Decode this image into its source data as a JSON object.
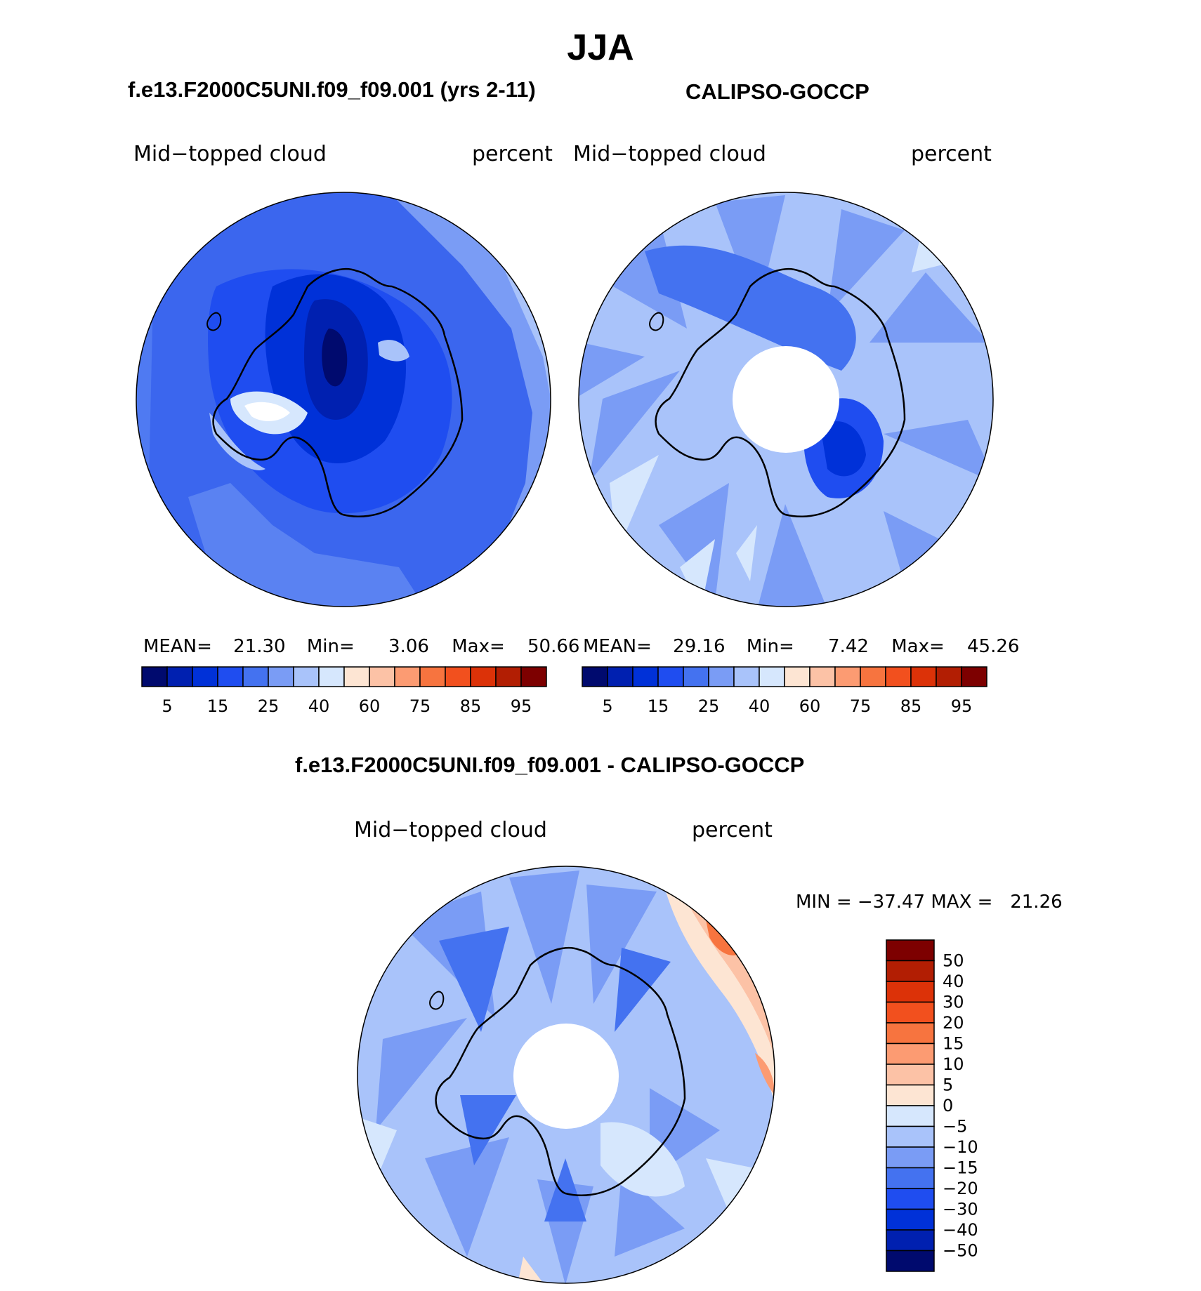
{
  "season_title": "JJA",
  "model_panel": {
    "title": "f.e13.F2000C5UNI.f09_f09.001 (yrs 2-11)",
    "variable": "Mid−topped cloud",
    "units": "percent",
    "stats": {
      "mean_label": "MEAN=",
      "mean": "21.30",
      "min_label": "Min=",
      "min": "3.06",
      "max_label": "Max=",
      "max": "50.66"
    }
  },
  "obs_panel": {
    "title": "CALIPSO-GOCCP",
    "variable": "Mid−topped cloud",
    "units": "percent",
    "stats": {
      "mean_label": "MEAN=",
      "mean": "29.16",
      "min_label": "Min=",
      "min": "7.42",
      "max_label": "Max=",
      "max": "45.26"
    }
  },
  "diff_panel": {
    "title": "f.e13.F2000C5UNI.f09_f09.001 - CALIPSO-GOCCP",
    "variable": "Mid−topped cloud",
    "units": "percent",
    "stats_line": "MIN = −37.47 MAX =   21.26"
  },
  "colorbar_abs": {
    "colors": [
      "#000a6e",
      "#0020b0",
      "#0031d8",
      "#1f4df0",
      "#4472f0",
      "#7a9cf5",
      "#a9c3fa",
      "#d6e7fd",
      "#fde5d3",
      "#fcc2a6",
      "#fc9b72",
      "#f7743f",
      "#f2501e",
      "#dc3208",
      "#b21e03",
      "#7d0000"
    ],
    "tick_labels": [
      "5",
      "15",
      "25",
      "40",
      "60",
      "75",
      "85",
      "95"
    ]
  },
  "colorbar_diff": {
    "colors": [
      "#7d0000",
      "#b21e03",
      "#dc3208",
      "#f2501e",
      "#f7743f",
      "#fc9b72",
      "#fcc2a6",
      "#fde5d3",
      "#d6e7fd",
      "#a9c3fa",
      "#7a9cf5",
      "#4472f0",
      "#1f4df0",
      "#0031d8",
      "#0020b0",
      "#000a6e"
    ],
    "tick_labels": [
      "50",
      "40",
      "30",
      "20",
      "15",
      "10",
      "5",
      "0",
      "−5",
      "−10",
      "−15",
      "−20",
      "−30",
      "−40",
      "−50"
    ]
  }
}
